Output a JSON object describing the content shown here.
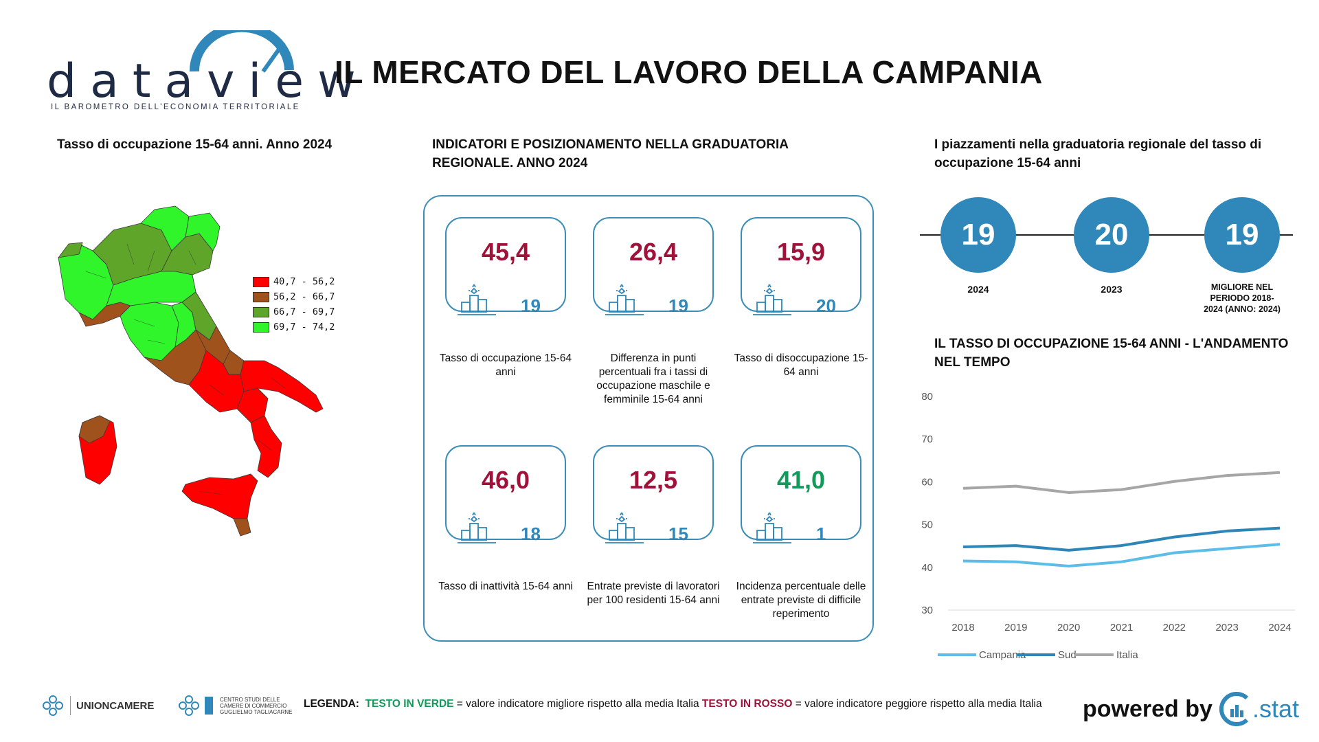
{
  "header": {
    "logo_text": "dataview",
    "logo_tagline": "IL BAROMETRO DELL'ECONOMIA TERRITORIALE",
    "title": "IL MERCATO DEL LAVORO DELLA CAMPANIA"
  },
  "map": {
    "title": "Tasso di occupazione 15-64 anni. Anno 2024",
    "legend": [
      {
        "label": "40,7 - 56,2",
        "color": "#ff0000"
      },
      {
        "label": "56,2 - 66,7",
        "color": "#a0521c"
      },
      {
        "label": "66,7 - 69,7",
        "color": "#5fa52a"
      },
      {
        "label": "69,7 - 74,2",
        "color": "#2ff52a"
      }
    ]
  },
  "indicators": {
    "title": "INDICATORI E POSIZIONAMENTO NELLA GRADUATORIA REGIONALE. ANNO 2024",
    "cards": [
      {
        "value": "45,4",
        "rank": "19",
        "label": "Tasso di occupazione 15-64 anni",
        "color": "#a0123a"
      },
      {
        "value": "26,4",
        "rank": "19",
        "label": "Differenza in punti percentuali fra i tassi di occupazione maschile e femminile 15-64 anni",
        "color": "#a0123a"
      },
      {
        "value": "15,9",
        "rank": "20",
        "label": "Tasso di disoccupazione 15-64 anni",
        "color": "#a0123a"
      },
      {
        "value": "46,0",
        "rank": "18",
        "label": "Tasso di inattività 15-64 anni",
        "color": "#a0123a"
      },
      {
        "value": "12,5",
        "rank": "15",
        "label": "Entrate previste di lavoratori per 100 residenti 15-64 anni",
        "color": "#a0123a"
      },
      {
        "value": "41,0",
        "rank": "1",
        "label": "Incidenza percentuale delle entrate previste di difficile reperimento",
        "color": "#119a5a"
      }
    ]
  },
  "ranking": {
    "title": "I piazzamenti nella graduatoria regionale del tasso di occupazione 15-64 anni",
    "items": [
      {
        "value": "19",
        "label": "2024"
      },
      {
        "value": "20",
        "label": "2023"
      },
      {
        "value": "19",
        "label": "MIGLIORE NEL PERIODO 2018-2024 (ANNO: 2024)"
      }
    ]
  },
  "chart_title": "IL TASSO DI OCCUPAZIONE 15-64 ANNI - L'ANDAMENTO NEL TEMPO",
  "chart_data": {
    "type": "line",
    "categories": [
      "2018",
      "2019",
      "2020",
      "2021",
      "2022",
      "2023",
      "2024"
    ],
    "series": [
      {
        "name": "Campania",
        "color": "#5bbde8",
        "values": [
          41.5,
          41.3,
          40.3,
          41.3,
          43.4,
          44.4,
          45.4
        ]
      },
      {
        "name": "Sud",
        "color": "#2e86b8",
        "values": [
          44.8,
          45.1,
          44.0,
          45.1,
          47.1,
          48.5,
          49.2
        ]
      },
      {
        "name": "Italia",
        "color": "#a6a6a6",
        "values": [
          58.5,
          59.0,
          57.5,
          58.2,
          60.1,
          61.5,
          62.2
        ]
      }
    ],
    "ylim": [
      30,
      80
    ],
    "yticks": [
      "80",
      "70",
      "60",
      "50",
      "40",
      "30"
    ],
    "title": "",
    "xlabel": "",
    "ylabel": "",
    "grid": false,
    "legend_position": "bottom"
  },
  "footer": {
    "unioncamere": "UNIONCAMERE",
    "centro_studi": [
      "CENTRO STUDI DELLE",
      "CAMERE DI COMMERCIO",
      "GUGLIELMO TAGLIACARNE"
    ],
    "legend_prefix": "LEGENDA:",
    "legend_green": "TESTO IN VERDE",
    "legend_green_text": "= valore indicatore migliore rispetto alla media Italia",
    "legend_red": "TESTO IN ROSSO",
    "legend_red_text": "= valore indicatore peggiore rispetto alla media Italia",
    "powered_by": "powered by",
    "cstat": ".stat"
  }
}
